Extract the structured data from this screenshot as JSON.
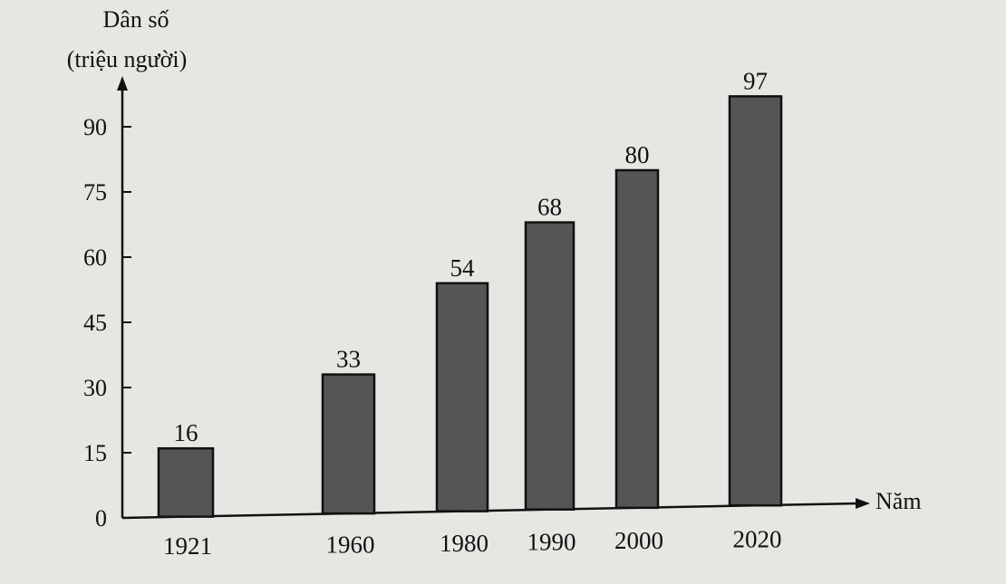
{
  "chart_data": {
    "type": "bar",
    "title": "",
    "ylabel_line1": "Dân số",
    "ylabel_line2": "(triệu người)",
    "xlabel": "Năm",
    "categories": [
      "1921",
      "1960",
      "1980",
      "1990",
      "2000",
      "2020"
    ],
    "values": [
      16,
      33,
      54,
      68,
      80,
      97
    ],
    "data_labels": [
      "16",
      "33",
      "54",
      "68",
      "80",
      "97"
    ],
    "yticks": [
      "0",
      "15",
      "30",
      "45",
      "60",
      "75",
      "90"
    ],
    "ylim": [
      0,
      100
    ],
    "grid": false,
    "bar_color": "#555555",
    "bar_edge_color": "#111111",
    "background_color": "#e6e6e3"
  }
}
